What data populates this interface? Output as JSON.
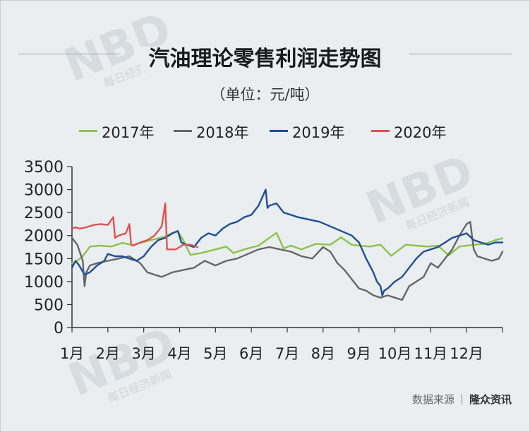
{
  "title": "汽油理论零售利润走势图",
  "subtitle": "（单位：元/吨）",
  "source": {
    "label": "数据来源",
    "publisher": "隆众资讯"
  },
  "watermark": {
    "text": "NBD",
    "sub": "每日经济新闻"
  },
  "colors": {
    "2017": "#8bc34a",
    "2018": "#666666",
    "2019": "#1f4e99",
    "2020": "#e05252",
    "axis": "#333333"
  },
  "chart_data": {
    "type": "line",
    "title": "汽油理论零售利润走势图",
    "ylabel": "元/吨",
    "ylim": [
      0,
      3500
    ],
    "yticks": [
      0,
      500,
      1000,
      1500,
      2000,
      2500,
      3000,
      3500
    ],
    "xlim": [
      1,
      13
    ],
    "categories": [
      "1月",
      "2月",
      "3月",
      "4月",
      "5月",
      "6月",
      "7月",
      "8月",
      "9月",
      "10月",
      "11月",
      "12月"
    ],
    "legend_position": "top",
    "grid": false,
    "series": [
      {
        "name": "2017年",
        "color": "#8bc34a",
        "x": [
          1.0,
          1.1,
          1.3,
          1.5,
          1.8,
          2.1,
          2.4,
          2.7,
          3.0,
          3.3,
          3.6,
          3.8,
          3.95,
          4.1,
          4.3,
          4.6,
          5.0,
          5.3,
          5.5,
          5.8,
          6.2,
          6.5,
          6.7,
          6.9,
          7.1,
          7.4,
          7.8,
          8.2,
          8.5,
          8.8,
          9.0,
          9.3,
          9.6,
          9.9,
          10.3,
          10.6,
          10.9,
          11.2,
          11.5,
          11.8,
          12.2,
          12.5,
          12.8,
          13.0
        ],
        "y": [
          1400,
          1420,
          1550,
          1760,
          1780,
          1760,
          1840,
          1790,
          1860,
          1920,
          1980,
          2060,
          2090,
          1900,
          1580,
          1620,
          1700,
          1760,
          1620,
          1700,
          1780,
          1950,
          2060,
          1720,
          1780,
          1700,
          1820,
          1800,
          1960,
          1800,
          1780,
          1760,
          1800,
          1560,
          1800,
          1780,
          1760,
          1780,
          1570,
          1760,
          1800,
          1820,
          1900,
          1940
        ]
      },
      {
        "name": "2018年",
        "color": "#666666",
        "x": [
          1.0,
          1.15,
          1.3,
          1.35,
          1.4,
          1.5,
          1.7,
          2.0,
          2.3,
          2.6,
          2.9,
          3.1,
          3.3,
          3.5,
          3.8,
          4.1,
          4.4,
          4.7,
          5.0,
          5.3,
          5.6,
          5.9,
          6.2,
          6.5,
          6.8,
          7.1,
          7.4,
          7.7,
          8.0,
          8.2,
          8.4,
          8.6,
          8.8,
          9.0,
          9.2,
          9.4,
          9.6,
          9.8,
          10.0,
          10.2,
          10.4,
          10.6,
          10.8,
          11.0,
          11.2,
          11.4,
          11.6,
          11.8,
          12.0,
          12.1,
          12.2,
          12.3,
          12.5,
          12.7,
          12.9,
          13.0
        ],
        "y": [
          1950,
          1800,
          1450,
          900,
          1200,
          1350,
          1400,
          1450,
          1500,
          1550,
          1400,
          1200,
          1150,
          1100,
          1200,
          1250,
          1300,
          1450,
          1350,
          1450,
          1500,
          1600,
          1700,
          1750,
          1700,
          1650,
          1550,
          1500,
          1750,
          1650,
          1400,
          1250,
          1050,
          850,
          800,
          700,
          650,
          700,
          650,
          600,
          900,
          1000,
          1100,
          1400,
          1300,
          1500,
          1700,
          2000,
          2250,
          2300,
          1700,
          1550,
          1500,
          1450,
          1500,
          1650
        ]
      },
      {
        "name": "2019年",
        "color": "#1f4e99",
        "x": [
          1.0,
          1.1,
          1.2,
          1.35,
          1.5,
          1.7,
          1.9,
          2.0,
          2.2,
          2.4,
          2.6,
          2.8,
          3.0,
          3.2,
          3.4,
          3.6,
          3.8,
          3.95,
          4.05,
          4.2,
          4.4,
          4.6,
          4.8,
          5.0,
          5.2,
          5.4,
          5.6,
          5.8,
          6.0,
          6.2,
          6.4,
          6.45,
          6.5,
          6.7,
          6.9,
          7.1,
          7.3,
          7.6,
          7.9,
          8.2,
          8.5,
          8.8,
          9.0,
          9.2,
          9.4,
          9.5,
          9.6,
          9.65,
          9.7,
          9.8,
          10.0,
          10.2,
          10.4,
          10.6,
          10.8,
          11.0,
          11.2,
          11.4,
          11.6,
          11.8,
          12.0,
          12.2,
          12.4,
          12.6,
          12.8,
          13.0
        ],
        "y": [
          1300,
          1450,
          1350,
          1150,
          1200,
          1350,
          1450,
          1600,
          1550,
          1550,
          1500,
          1450,
          1550,
          1750,
          1900,
          1950,
          2050,
          2100,
          1850,
          1800,
          1750,
          1950,
          2050,
          2000,
          2150,
          2250,
          2300,
          2400,
          2450,
          2650,
          3000,
          2600,
          2650,
          2700,
          2500,
          2450,
          2400,
          2350,
          2300,
          2200,
          2100,
          2000,
          1850,
          1500,
          1200,
          1000,
          900,
          700,
          800,
          850,
          1000,
          1100,
          1300,
          1500,
          1650,
          1700,
          1750,
          1850,
          1950,
          2000,
          2050,
          1900,
          1850,
          1800,
          1850,
          1850
        ]
      },
      {
        "name": "2020年",
        "color": "#e05252",
        "x": [
          1.0,
          1.1,
          1.2,
          1.4,
          1.6,
          1.8,
          2.0,
          2.15,
          2.2,
          2.3,
          2.5,
          2.6,
          2.65,
          2.7,
          2.9,
          3.1,
          3.3,
          3.5,
          3.6,
          3.65,
          3.7,
          3.9,
          4.1,
          4.3,
          4.5
        ],
        "y": [
          2150,
          2180,
          2150,
          2180,
          2230,
          2250,
          2230,
          2400,
          1950,
          2000,
          2050,
          2250,
          1800,
          1780,
          1850,
          1900,
          2000,
          2200,
          2700,
          1700,
          1700,
          1700,
          1800,
          1800,
          1750
        ]
      }
    ]
  }
}
